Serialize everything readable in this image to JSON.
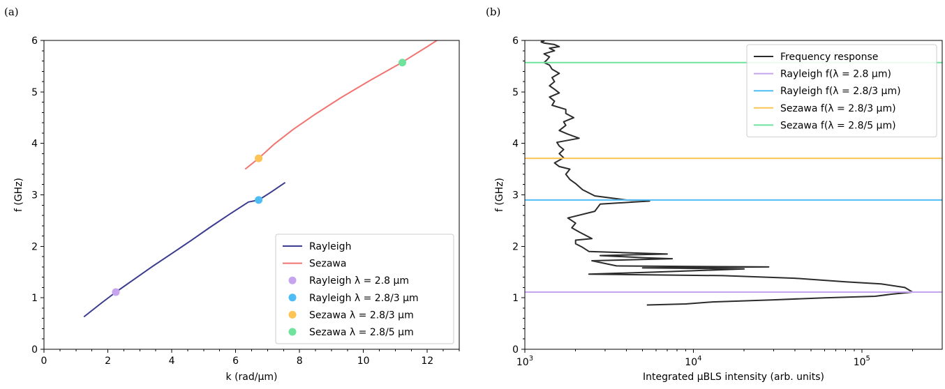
{
  "chart_data": [
    {
      "panel": "(a)",
      "type": "line",
      "xlabel": "k (rad/µm)",
      "ylabel": "f (GHz)",
      "xlim": [
        0,
        13
      ],
      "ylim": [
        0,
        6
      ],
      "xticks": [
        0,
        2,
        4,
        6,
        8,
        10,
        12
      ],
      "yticks": [
        0,
        1,
        2,
        3,
        4,
        5,
        6
      ],
      "legend_position": "lower-right",
      "series": [
        {
          "name": "Rayleigh",
          "kind": "line",
          "color": "#3b3b8f",
          "x": [
            1.25,
            1.8,
            2.25,
            2.8,
            3.4,
            4.0,
            4.6,
            5.2,
            5.8,
            6.4,
            6.72,
            7.1,
            7.55
          ],
          "y": [
            0.63,
            0.9,
            1.11,
            1.35,
            1.61,
            1.86,
            2.11,
            2.37,
            2.62,
            2.86,
            2.9,
            3.05,
            3.24
          ]
        },
        {
          "name": "Sezawa",
          "kind": "line",
          "color": "#f07470",
          "x": [
            6.3,
            6.72,
            7.2,
            7.8,
            8.5,
            9.3,
            10.2,
            11.2,
            12.0,
            12.35
          ],
          "y": [
            3.5,
            3.71,
            3.98,
            4.27,
            4.57,
            4.89,
            5.22,
            5.57,
            5.88,
            6.02
          ]
        },
        {
          "name": "Rayleigh λ = 2.8 µm",
          "kind": "point",
          "color": "#c6a4ee",
          "x": [
            2.25
          ],
          "y": [
            1.11
          ]
        },
        {
          "name": "Rayleigh λ = 2.8/3 µm",
          "kind": "point",
          "color": "#4fbdf5",
          "x": [
            6.72
          ],
          "y": [
            2.9
          ]
        },
        {
          "name": "Sezawa λ = 2.8/3 µm",
          "kind": "point",
          "color": "#fbc454",
          "x": [
            6.72
          ],
          "y": [
            3.71
          ]
        },
        {
          "name": "Sezawa λ = 2.8/5 µm",
          "kind": "point",
          "color": "#6fe39e",
          "x": [
            11.22
          ],
          "y": [
            5.57
          ]
        }
      ]
    },
    {
      "panel": "(b)",
      "type": "line",
      "xlabel": "Integrated µBLS intensity (arb. units)",
      "ylabel": "f (GHz)",
      "xscale": "log",
      "xlim": [
        1000,
        300000
      ],
      "ylim": [
        0,
        6
      ],
      "xticks": [
        1000,
        10000,
        100000
      ],
      "xticklabels": [
        "10",
        "10",
        "10"
      ],
      "xtickexponents": [
        "3",
        "4",
        "5"
      ],
      "yticks": [
        0,
        1,
        2,
        3,
        4,
        5,
        6
      ],
      "legend_position": "upper-right",
      "series": [
        {
          "name": "Frequency response",
          "kind": "line",
          "color": "#2b2b2b",
          "x": [
            5300,
            9000,
            13000,
            30000,
            60000,
            120000,
            150000,
            200000,
            180000,
            130000,
            80000,
            40000,
            15000,
            4000,
            2400,
            6000,
            20000,
            5000,
            28000,
            3500,
            2500,
            7500,
            5000,
            2800,
            7000,
            2400,
            2200,
            2000,
            2000,
            2500,
            2100,
            1900,
            2000,
            1800,
            2600,
            2800,
            5500,
            4000,
            2600,
            2200,
            2000,
            1850,
            1750,
            1850,
            1600,
            1500,
            1700,
            1600,
            1700,
            1600,
            1550,
            2100,
            1800,
            1600,
            1750,
            1700,
            1950,
            1750,
            1750,
            1450,
            1500,
            1400,
            1600,
            1500,
            1400,
            1500,
            1450,
            1600,
            1450,
            1400,
            1300,
            1350,
            1400,
            1300,
            1500,
            1400,
            1600,
            1500,
            1300,
            1250,
            1300,
            1250
          ],
          "y": [
            0.86,
            0.88,
            0.92,
            0.96,
            1.0,
            1.03,
            1.07,
            1.11,
            1.2,
            1.27,
            1.31,
            1.38,
            1.43,
            1.45,
            1.46,
            1.5,
            1.56,
            1.58,
            1.6,
            1.62,
            1.72,
            1.76,
            1.78,
            1.82,
            1.85,
            1.9,
            1.98,
            2.05,
            2.12,
            2.15,
            2.28,
            2.36,
            2.45,
            2.55,
            2.68,
            2.82,
            2.88,
            2.9,
            2.98,
            3.1,
            3.22,
            3.3,
            3.4,
            3.5,
            3.55,
            3.62,
            3.72,
            3.8,
            3.88,
            3.95,
            4.02,
            4.1,
            4.18,
            4.25,
            4.35,
            4.42,
            4.5,
            4.58,
            4.66,
            4.74,
            4.82,
            4.9,
            4.98,
            5.05,
            5.12,
            5.2,
            5.28,
            5.36,
            5.44,
            5.52,
            5.57,
            5.62,
            5.68,
            5.74,
            5.8,
            5.85,
            5.88,
            5.92,
            5.95,
            5.97,
            5.99,
            6.0
          ]
        },
        {
          "name": "Rayleigh f(λ = 2.8 µm)",
          "kind": "hline",
          "color": "#c6a4ee",
          "y": 1.11
        },
        {
          "name": "Rayleigh f(λ = 2.8/3 µm)",
          "kind": "hline",
          "color": "#4fbdf5",
          "y": 2.9
        },
        {
          "name": "Sezawa f(λ = 2.8/3 µm)",
          "kind": "hline",
          "color": "#fbc454",
          "y": 3.71
        },
        {
          "name": "Sezawa f(λ = 2.8/5 µm)",
          "kind": "hline",
          "color": "#6fe39e",
          "y": 5.57
        }
      ]
    }
  ]
}
